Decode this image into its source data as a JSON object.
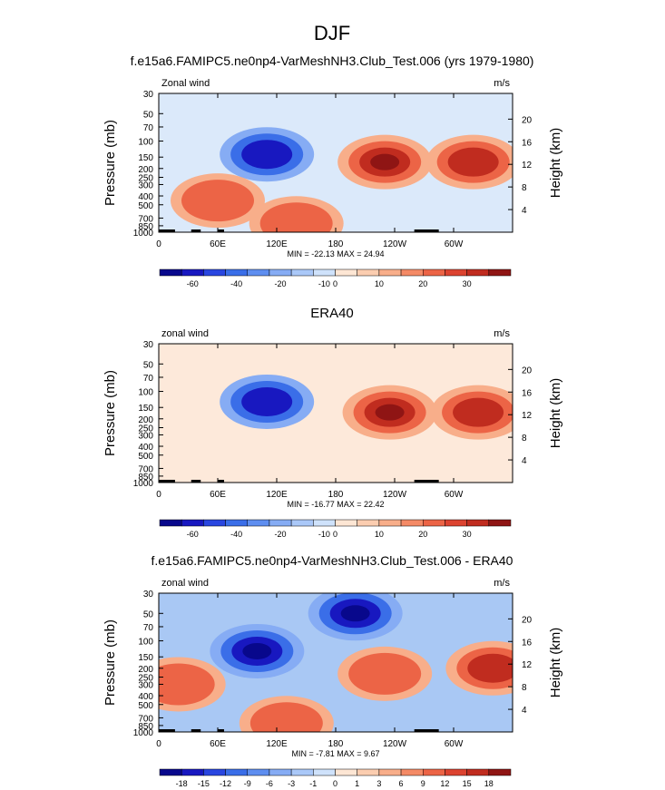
{
  "page": {
    "title": "DJF"
  },
  "colors": {
    "neg": [
      "#08088c",
      "#1818c0",
      "#2946e0",
      "#3a6ee8",
      "#5e8ef0",
      "#86acf4",
      "#aac8f8",
      "#cfe2fb"
    ],
    "pos": [
      "#fde6d4",
      "#fbcdb0",
      "#f8ae8a",
      "#f48a66",
      "#ec6446",
      "#dc4330",
      "#c02c1f",
      "#8f1514"
    ]
  },
  "chart_data": [
    {
      "type": "heatmap",
      "title": "f.e15a6.FAMIPC5.ne0np4-VarMeshNH3.Club_Test.006 (yrs 1979-1980)",
      "left_label": "Zonal wind",
      "units": "m/s",
      "ylabel": "Pressure (mb)",
      "y2label": "Height (km)",
      "y_ticks": [
        "30",
        "50",
        "70",
        "100",
        "150",
        "200",
        "250",
        "300",
        "400",
        "500",
        "700",
        "850",
        "1000"
      ],
      "y2_ticks": [
        "20",
        "16",
        "12",
        "8",
        "4"
      ],
      "x_ticks": [
        "0",
        "60E",
        "120E",
        "180",
        "120W",
        "60W"
      ],
      "stats": "MIN = -22.13  MAX =  24.94",
      "colorbar_labels": [
        "-60",
        "-40",
        "-20",
        "-10",
        "0",
        "10",
        "20",
        "30"
      ],
      "background": "#dbe9fa",
      "blobs": [
        {
          "lon": 110,
          "p": 140,
          "level": -2
        },
        {
          "lon": 230,
          "p": 170,
          "level": 3
        },
        {
          "lon": 320,
          "p": 170,
          "level": 2
        },
        {
          "lon": 140,
          "p": 800,
          "level": 1
        },
        {
          "lon": 60,
          "p": 450,
          "level": 1
        }
      ],
      "min": -22.13,
      "max": 24.94
    },
    {
      "type": "heatmap",
      "title": "ERA40",
      "left_label": "zonal wind",
      "units": "m/s",
      "ylabel": "Pressure (mb)",
      "y2label": "Height (km)",
      "y_ticks": [
        "30",
        "50",
        "70",
        "100",
        "150",
        "200",
        "250",
        "300",
        "400",
        "500",
        "700",
        "850",
        "1000"
      ],
      "y2_ticks": [
        "20",
        "16",
        "12",
        "8",
        "4"
      ],
      "x_ticks": [
        "0",
        "60E",
        "120E",
        "180",
        "120W",
        "60W"
      ],
      "stats": "MIN = -16.77  MAX =  22.42",
      "colorbar_labels": [
        "-60",
        "-40",
        "-20",
        "-10",
        "0",
        "10",
        "20",
        "30"
      ],
      "background": "#fde9da",
      "blobs": [
        {
          "lon": 110,
          "p": 130,
          "level": -2
        },
        {
          "lon": 235,
          "p": 170,
          "level": 3
        },
        {
          "lon": 325,
          "p": 170,
          "level": 2
        }
      ],
      "min": -16.77,
      "max": 22.42
    },
    {
      "type": "heatmap",
      "title": "f.e15a6.FAMIPC5.ne0np4-VarMeshNH3.Club_Test.006 - ERA40",
      "left_label": "zonal wind",
      "units": "m/s",
      "ylabel": "Pressure (mb)",
      "y2label": "Height (km)",
      "y_ticks": [
        "30",
        "50",
        "70",
        "100",
        "150",
        "200",
        "250",
        "300",
        "400",
        "500",
        "700",
        "850",
        "1000"
      ],
      "y2_ticks": [
        "20",
        "16",
        "12",
        "8",
        "4"
      ],
      "x_ticks": [
        "0",
        "60E",
        "120E",
        "180",
        "120W",
        "60W"
      ],
      "stats": "MIN = -7.81  MAX =  9.67",
      "colorbar_labels": [
        "-18",
        "-15",
        "-12",
        "-9",
        "-6",
        "-3",
        "-1",
        "0",
        "1",
        "3",
        "6",
        "9",
        "12",
        "15",
        "18"
      ],
      "background": "#a9c8f4",
      "blobs": [
        {
          "lon": 230,
          "p": 230,
          "level": 1
        },
        {
          "lon": 340,
          "p": 200,
          "level": 2
        },
        {
          "lon": 130,
          "p": 800,
          "level": 1
        },
        {
          "lon": 20,
          "p": 300,
          "level": 1
        },
        {
          "lon": 200,
          "p": 50,
          "level": -3
        },
        {
          "lon": 100,
          "p": 130,
          "level": -3
        }
      ],
      "min": -7.81,
      "max": 9.67
    }
  ]
}
